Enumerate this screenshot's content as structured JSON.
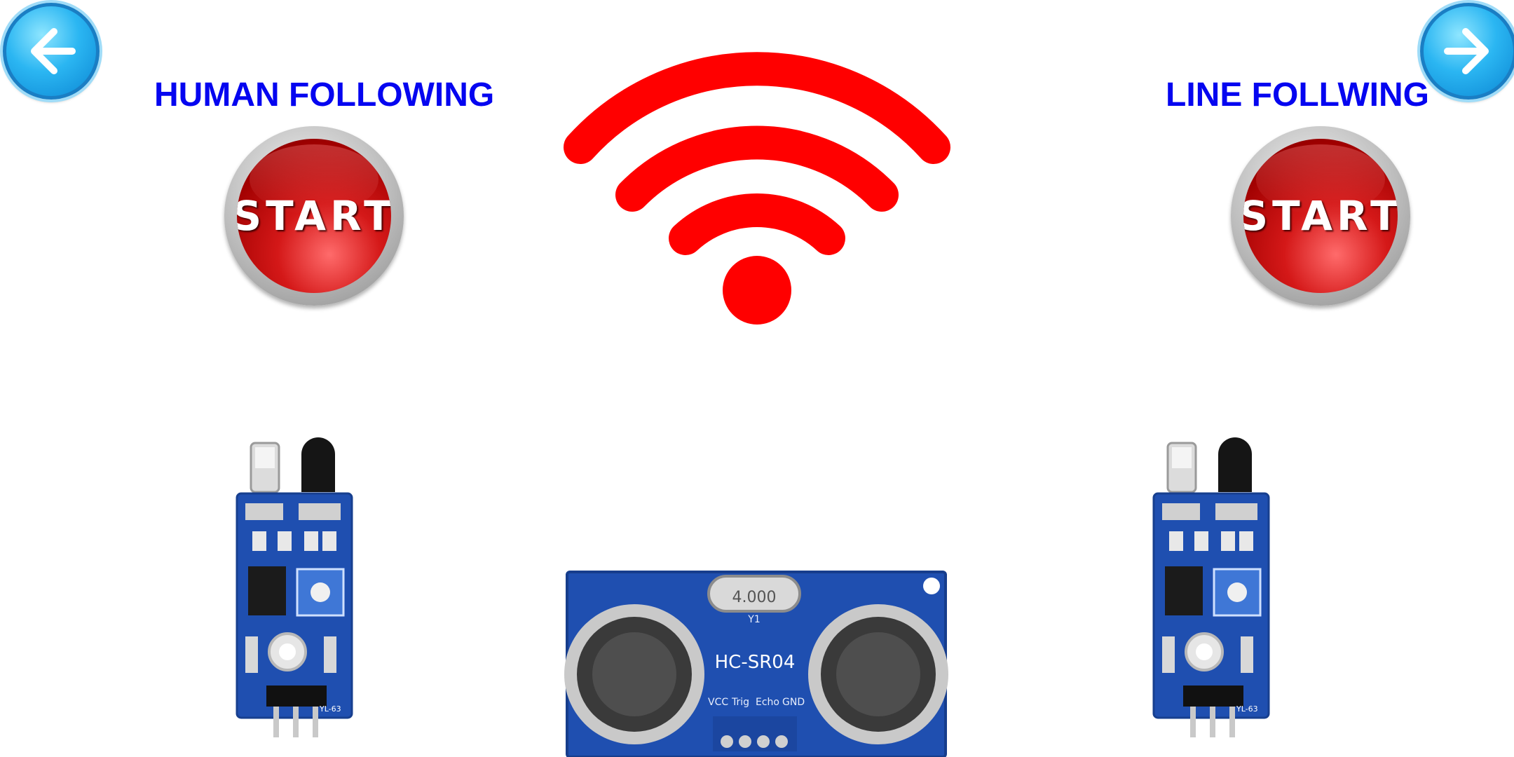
{
  "nav": {
    "back_icon": "arrow-left-icon",
    "forward_icon": "arrow-right-icon"
  },
  "modes": {
    "left": {
      "title": "HUMAN FOLLOWING",
      "start_label": "START"
    },
    "right": {
      "title": "LINE FOLLWING",
      "start_label": "START"
    }
  },
  "wifi": {
    "icon": "wifi-icon",
    "color": "#ff0000"
  },
  "sensors": {
    "ultrasonic": {
      "model": "HC-SR04",
      "crystal": "4.000",
      "crystal_ref": "Y1",
      "pins": [
        "VCC",
        "Trig",
        "Echo",
        "GND"
      ]
    },
    "ir_module": {
      "model": "YL-63"
    }
  },
  "colors": {
    "title": "#0505f0",
    "start_red": "#c40000",
    "nav_blue": "#2bb6f2",
    "pcb_blue": "#1f4fb0"
  }
}
